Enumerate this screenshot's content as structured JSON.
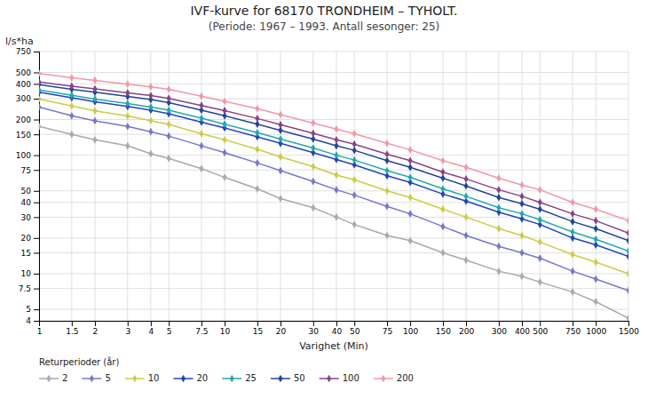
{
  "chart_data": {
    "type": "line",
    "title": "IVF-kurve for 68170 TRONDHEIM – TYHOLT.",
    "subtitle": "(Periode: 1967 – 1993. Antall sesonger: 25)",
    "x_label": "Varighet  (Min)",
    "y_label": "l/s*ha",
    "legend_title": "Returperioder (år)",
    "log": true,
    "grid": true,
    "legend": "bottom",
    "marker": "diamond",
    "xlim": [
      1,
      1500
    ],
    "ylim": [
      4,
      750
    ],
    "xticks": [
      1,
      1.5,
      2,
      3,
      4,
      5,
      7.5,
      10,
      15,
      20,
      30,
      40,
      50,
      75,
      100,
      150,
      200,
      300,
      400,
      500,
      750,
      1000,
      1500
    ],
    "yticks": [
      4,
      5,
      7.5,
      10,
      15,
      20,
      30,
      40,
      50,
      75,
      100,
      150,
      200,
      300,
      400,
      500,
      750
    ],
    "x": [
      1,
      1.5,
      2,
      3,
      4,
      5,
      7.5,
      10,
      15,
      20,
      30,
      40,
      50,
      75,
      100,
      150,
      200,
      300,
      400,
      500,
      750,
      1000,
      1500
    ],
    "series": [
      {
        "name": "2",
        "color": "#aaaaaa",
        "values": [
          175,
          150,
          135,
          120,
          103,
          94,
          77,
          65,
          52,
          43,
          36,
          30,
          26,
          21,
          19,
          15,
          13,
          10.5,
          9.5,
          8.5,
          7.0,
          5.8,
          4.2
        ]
      },
      {
        "name": "5",
        "color": "#7777cc",
        "values": [
          255,
          215,
          195,
          175,
          158,
          145,
          120,
          105,
          86,
          74,
          60,
          51,
          46,
          37,
          32,
          25,
          21,
          17,
          15,
          13.5,
          10.5,
          9.0,
          7.2
        ]
      },
      {
        "name": "10",
        "color": "#cccc44",
        "values": [
          298,
          260,
          237,
          214,
          196,
          182,
          152,
          135,
          112,
          97,
          80,
          68,
          62,
          50,
          44,
          35,
          30,
          24,
          21,
          18.5,
          14.5,
          12.5,
          10.0
        ]
      },
      {
        "name": "20",
        "color": "#2244bb",
        "values": [
          340,
          305,
          283,
          258,
          240,
          224,
          190,
          170,
          143,
          126,
          105,
          92,
          83,
          67,
          59,
          47,
          41,
          33,
          29,
          26,
          20,
          17.5,
          14.0
        ]
      },
      {
        "name": "25",
        "color": "#22aaaa",
        "values": [
          355,
          320,
          298,
          273,
          255,
          240,
          205,
          183,
          155,
          137,
          115,
          100,
          91,
          74,
          65,
          52,
          45,
          36,
          32,
          28.5,
          22.5,
          19.5,
          15.5
        ]
      },
      {
        "name": "50",
        "color": "#224499",
        "values": [
          395,
          360,
          340,
          313,
          295,
          278,
          240,
          215,
          183,
          162,
          137,
          120,
          110,
          90,
          79,
          64,
          55,
          44,
          39,
          35,
          27.5,
          24,
          19
        ]
      },
      {
        "name": "100",
        "color": "#884488",
        "values": [
          415,
          383,
          363,
          336,
          319,
          302,
          263,
          238,
          204,
          181,
          153,
          135,
          124,
          102,
          90,
          72,
          63,
          51,
          45,
          40,
          32,
          28,
          22
        ]
      },
      {
        "name": "200",
        "color": "#ee99aa",
        "values": [
          490,
          450,
          428,
          398,
          378,
          360,
          315,
          285,
          247,
          220,
          187,
          166,
          152,
          126,
          111,
          90,
          79,
          64,
          56,
          51,
          40,
          35,
          28
        ]
      }
    ]
  }
}
